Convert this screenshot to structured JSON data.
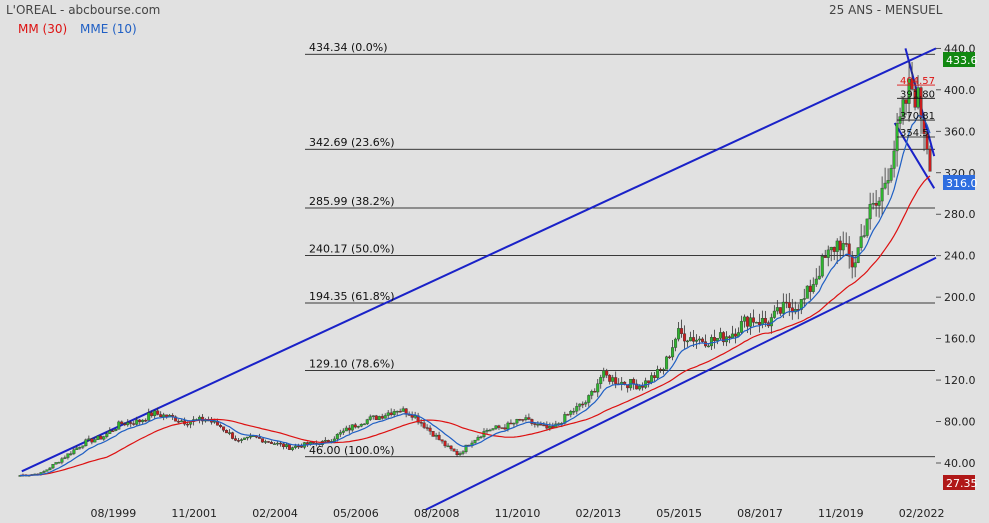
{
  "header": {
    "title": "L'OREAL - abcbourse.com",
    "period": "25 ANS - MENSUEL",
    "legend": [
      {
        "label": "MM (30)",
        "color": "#dd1111"
      },
      {
        "label": "MME (10)",
        "color": "#1f5fc4"
      }
    ]
  },
  "chart_data": {
    "type": "candlestick",
    "ylim": [
      20,
      450
    ],
    "y_ticks": [
      40,
      80,
      120,
      160,
      200,
      240,
      280,
      320,
      360,
      400,
      440
    ],
    "y_tick_labels": [
      "40.00",
      "80.00",
      "120.0",
      "160.0",
      "200.0",
      "240.0",
      "280.0",
      "320.0",
      "360.0",
      "400.0",
      "440.0"
    ],
    "x_range": [
      1997.0,
      2022.5
    ],
    "x_ticks": [
      {
        "x": 1999.6,
        "label": "08/1999"
      },
      {
        "x": 2001.85,
        "label": "11/2001"
      },
      {
        "x": 2004.1,
        "label": "02/2004"
      },
      {
        "x": 2006.35,
        "label": "05/2006"
      },
      {
        "x": 2008.6,
        "label": "08/2008"
      },
      {
        "x": 2010.85,
        "label": "11/2010"
      },
      {
        "x": 2013.1,
        "label": "02/2013"
      },
      {
        "x": 2015.35,
        "label": "05/2015"
      },
      {
        "x": 2017.6,
        "label": "08/2017"
      },
      {
        "x": 2019.85,
        "label": "11/2019"
      },
      {
        "x": 2022.1,
        "label": "02/2022"
      }
    ],
    "price_anchors": [
      [
        1997.0,
        28
      ],
      [
        1997.6,
        30
      ],
      [
        1998.2,
        45
      ],
      [
        1998.8,
        60
      ],
      [
        1999.3,
        65
      ],
      [
        1999.8,
        78
      ],
      [
        2000.3,
        80
      ],
      [
        2000.7,
        88
      ],
      [
        2001.1,
        85
      ],
      [
        2001.6,
        80
      ],
      [
        2002.2,
        82
      ],
      [
        2002.6,
        75
      ],
      [
        2003.1,
        60
      ],
      [
        2003.5,
        65
      ],
      [
        2004.0,
        60
      ],
      [
        2004.5,
        55
      ],
      [
        2005.0,
        58
      ],
      [
        2005.5,
        60
      ],
      [
        2006.0,
        70
      ],
      [
        2006.5,
        80
      ],
      [
        2007.0,
        85
      ],
      [
        2007.5,
        92
      ],
      [
        2007.9,
        88
      ],
      [
        2008.3,
        75
      ],
      [
        2008.9,
        55
      ],
      [
        2009.2,
        48
      ],
      [
        2009.6,
        62
      ],
      [
        2010.0,
        72
      ],
      [
        2010.5,
        75
      ],
      [
        2011.0,
        82
      ],
      [
        2011.5,
        75
      ],
      [
        2011.8,
        72
      ],
      [
        2012.3,
        88
      ],
      [
        2012.8,
        100
      ],
      [
        2013.2,
        125
      ],
      [
        2013.7,
        118
      ],
      [
        2014.3,
        115
      ],
      [
        2014.9,
        130
      ],
      [
        2015.3,
        165
      ],
      [
        2015.8,
        160
      ],
      [
        2016.3,
        158
      ],
      [
        2016.8,
        165
      ],
      [
        2017.3,
        180
      ],
      [
        2017.8,
        175
      ],
      [
        2018.3,
        190
      ],
      [
        2018.8,
        195
      ],
      [
        2019.3,
        230
      ],
      [
        2019.8,
        255
      ],
      [
        2020.2,
        230
      ],
      [
        2020.6,
        280
      ],
      [
        2020.9,
        290
      ],
      [
        2021.3,
        340
      ],
      [
        2021.6,
        380
      ],
      [
        2021.8,
        405
      ],
      [
        2022.0,
        390
      ],
      [
        2022.2,
        360
      ],
      [
        2022.3,
        340
      ],
      [
        2022.4,
        320
      ]
    ],
    "current_price": "433.6",
    "last_close": "316.0",
    "volume_label": "27.35",
    "fibonacci": [
      {
        "price": 434.34,
        "label": "434.34  (0.0%)"
      },
      {
        "price": 342.69,
        "label": "342.69  (23.6%)"
      },
      {
        "price": 285.99,
        "label": "285.99  (38.2%)"
      },
      {
        "price": 240.17,
        "label": "240.17  (50.0%)"
      },
      {
        "price": 194.35,
        "label": "194.35  (61.8%)"
      },
      {
        "price": 129.1,
        "label": "129.10  (78.6%)"
      },
      {
        "price": 46.0,
        "label": "46.00  (100.0%)"
      }
    ],
    "mini_fibonacci": [
      {
        "price": 404.57,
        "label": "404.57",
        "color": "#dd1111"
      },
      {
        "price": 391.8,
        "label": "391.80",
        "color": "#111111"
      },
      {
        "price": 370.81,
        "label": "370.81",
        "color": "#111111"
      },
      {
        "price": 354.5,
        "label": "354.5",
        "color": "#111111"
      }
    ],
    "trendlines": [
      {
        "from": [
          1997.05,
          32
        ],
        "to": [
          2022.5,
          440
        ]
      },
      {
        "from": [
          2008.3,
          -5
        ],
        "to": [
          2022.5,
          238
        ]
      },
      {
        "from": [
          2021.65,
          440
        ],
        "to": [
          2022.45,
          336
        ]
      },
      {
        "from": [
          2021.35,
          368
        ],
        "to": [
          2022.45,
          305
        ]
      }
    ]
  }
}
